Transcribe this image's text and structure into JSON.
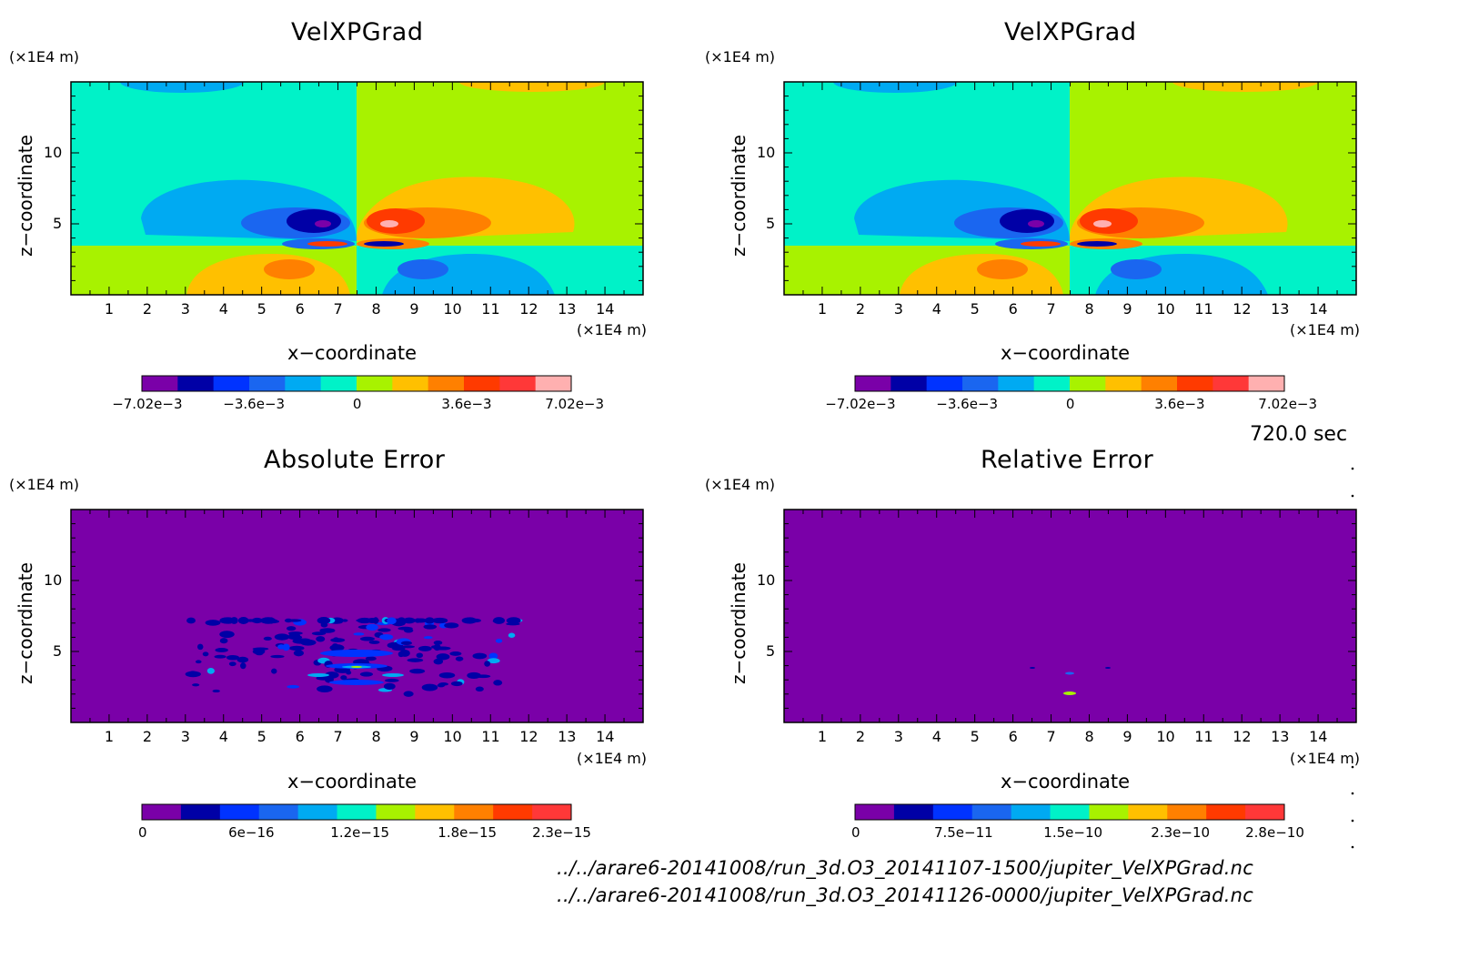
{
  "time_label": "720.0 sec",
  "file_paths": [
    "../../arare6-20141008/run_3d.O3_20141107-1500/jupiter_VelXPGrad.nc",
    "../../arare6-20141008/run_3d.O3_20141126-0000/jupiter_VelXPGrad.nc"
  ],
  "colors": {
    "palette": [
      "#7a00a8",
      "#0000a6",
      "#0033ff",
      "#1a66f0",
      "#00aaf2",
      "#00f2c8",
      "#a8f200",
      "#ffc000",
      "#ff8000",
      "#ff3a00",
      "#ff3838",
      "#ffb0b0"
    ],
    "background": "#7a00a8"
  },
  "panels": [
    {
      "id": "velx-1",
      "title": "VelXPGrad",
      "unit_x": "(×1E4 m)",
      "unit_z": "(×1E4 m)",
      "xlabel": "x−coordinate",
      "ylabel": "z−coordinate",
      "colorbar_labels": [
        "−7.02e−3",
        "−3.6e−3",
        "0",
        "3.6e−3",
        "7.02e−3"
      ]
    },
    {
      "id": "velx-2",
      "title": "VelXPGrad",
      "unit_x": "(×1E4 m)",
      "unit_z": "(×1E4 m)",
      "xlabel": "x−coordinate",
      "ylabel": "z−coordinate",
      "colorbar_labels": [
        "−7.02e−3",
        "−3.6e−3",
        "0",
        "3.6e−3",
        "7.02e−3"
      ]
    },
    {
      "id": "abs-err",
      "title": "Absolute Error",
      "unit_x": "(×1E4 m)",
      "unit_z": "(×1E4 m)",
      "xlabel": "x−coordinate",
      "ylabel": "z−coordinate",
      "colorbar_labels": [
        "0",
        "6e−16",
        "1.2e−15",
        "1.8e−15",
        "2.3e−15"
      ]
    },
    {
      "id": "rel-err",
      "title": "Relative Error",
      "unit_x": "(×1E4 m)",
      "unit_z": "(×1E4 m)",
      "xlabel": "x−coordinate",
      "ylabel": "z−coordinate",
      "colorbar_labels": [
        "0",
        "7.5e−11",
        "1.5e−10",
        "2.3e−10",
        "2.8e−10"
      ]
    }
  ],
  "chart_data": [
    {
      "type": "heatmap",
      "title": "VelXPGrad",
      "xlabel": "x−coordinate",
      "ylabel": "z−coordinate",
      "xlim": [
        0,
        15
      ],
      "ylim": [
        0,
        15
      ],
      "x_ticks": [
        1,
        2,
        3,
        4,
        5,
        6,
        7,
        8,
        9,
        10,
        11,
        12,
        13,
        14
      ],
      "y_ticks": [
        5,
        10
      ],
      "colorbar": {
        "min": -0.00702,
        "max": 0.00702,
        "levels": 12,
        "labels": [
          "−7.02e−3",
          "−3.6e−3",
          "0",
          "3.6e−3",
          "7.02e−3"
        ]
      }
    },
    {
      "type": "heatmap",
      "title": "VelXPGrad",
      "xlabel": "x−coordinate",
      "ylabel": "z−coordinate",
      "xlim": [
        0,
        15
      ],
      "ylim": [
        0,
        15
      ],
      "x_ticks": [
        1,
        2,
        3,
        4,
        5,
        6,
        7,
        8,
        9,
        10,
        11,
        12,
        13,
        14
      ],
      "y_ticks": [
        5,
        10
      ],
      "colorbar": {
        "min": -0.00702,
        "max": 0.00702,
        "levels": 12,
        "labels": [
          "−7.02e−3",
          "−3.6e−3",
          "0",
          "3.6e−3",
          "7.02e−3"
        ]
      }
    },
    {
      "type": "heatmap",
      "title": "Absolute Error",
      "xlabel": "x−coordinate",
      "ylabel": "z−coordinate",
      "xlim": [
        0,
        15
      ],
      "ylim": [
        0,
        15
      ],
      "x_ticks": [
        1,
        2,
        3,
        4,
        5,
        6,
        7,
        8,
        9,
        10,
        11,
        12,
        13,
        14
      ],
      "y_ticks": [
        5,
        10
      ],
      "colorbar": {
        "min": 0,
        "max": 2.3e-15,
        "levels": 11,
        "labels": [
          "0",
          "6e−16",
          "1.2e−15",
          "1.8e−15",
          "2.3e−15"
        ]
      }
    },
    {
      "type": "heatmap",
      "title": "Relative Error",
      "xlabel": "x−coordinate",
      "ylabel": "z−coordinate",
      "xlim": [
        0,
        15
      ],
      "ylim": [
        0,
        15
      ],
      "x_ticks": [
        1,
        2,
        3,
        4,
        5,
        6,
        7,
        8,
        9,
        10,
        11,
        12,
        13,
        14
      ],
      "y_ticks": [
        5,
        10
      ],
      "colorbar": {
        "min": 0,
        "max": 2.8e-10,
        "levels": 11,
        "labels": [
          "0",
          "7.5e−11",
          "1.5e−10",
          "2.3e−10",
          "2.8e−10"
        ]
      }
    }
  ]
}
